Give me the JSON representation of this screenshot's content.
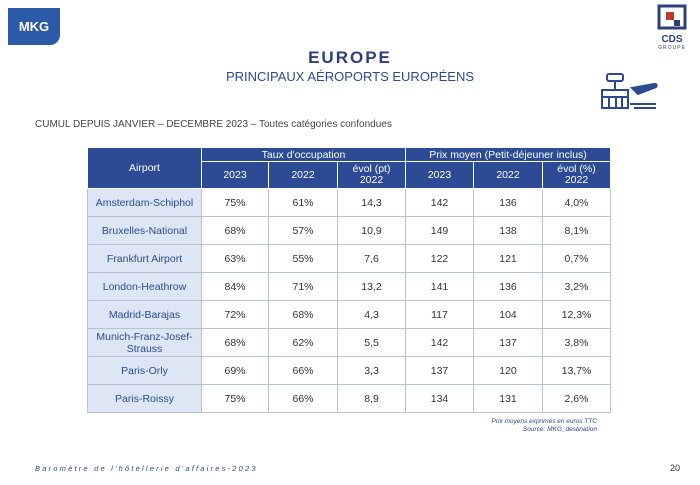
{
  "header": {
    "logo": "MKG",
    "partner_logo": "CDS",
    "partner_sub": "GROUPE"
  },
  "title": "EUROPE",
  "subtitle": "PRINCIPAUX AÉROPORTS EUROPÉENS",
  "caption": "CUMUL DEPUIS JANVIER – DECEMBRE 2023 – Toutes catégories confondues",
  "table": {
    "first_header": "Airport",
    "groups": [
      "Taux d'occupation",
      "Prix moyen (Petit-déjeuner inclus)"
    ],
    "columns": [
      "2023",
      "2022",
      "évol (pt)\n2022",
      "2023",
      "2022",
      "évol (%)\n2022"
    ],
    "rows": [
      [
        "Amsterdam-Schiphol",
        "75%",
        "61%",
        "14,3",
        "142",
        "136",
        "4,0%"
      ],
      [
        "Bruxelles-National",
        "68%",
        "57%",
        "10,9",
        "149",
        "138",
        "8,1%"
      ],
      [
        "Frankfurt Airport",
        "63%",
        "55%",
        "7,6",
        "122",
        "121",
        "0,7%"
      ],
      [
        "London-Heathrow",
        "84%",
        "71%",
        "13,2",
        "141",
        "136",
        "3,2%"
      ],
      [
        "Madrid-Barajas",
        "72%",
        "68%",
        "4,3",
        "117",
        "104",
        "12,3%"
      ],
      [
        "Munich-Franz-Josef-Strauss",
        "68%",
        "62%",
        "5,5",
        "142",
        "137",
        "3,8%"
      ],
      [
        "Paris-Orly",
        "69%",
        "66%",
        "3,3",
        "137",
        "120",
        "13,7%"
      ],
      [
        "Paris-Roissy",
        "75%",
        "66%",
        "8,9",
        "134",
        "131",
        "2,6%"
      ]
    ]
  },
  "notes": [
    "Prix moyens exprimés en euros TTC",
    "Source: MKG_destination"
  ],
  "footer": "Baromètre de l'hôtellerie d'affaires-2023",
  "page_number": "20"
}
